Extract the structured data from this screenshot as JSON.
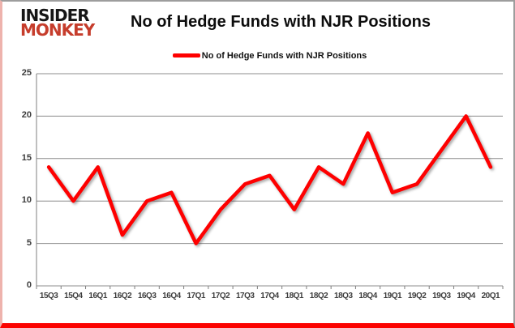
{
  "logo": {
    "line1": "INSIDER",
    "line2": "MONKEY"
  },
  "header": {
    "title": "No of Hedge Funds with NJR Positions"
  },
  "legend": {
    "label": "No of Hedge Funds with NJR Positions"
  },
  "colors": {
    "line": "#fe0000",
    "grid": "#8c8c8c",
    "axis": "#7f7f7f",
    "tick_text": "#3c3c3c",
    "logo_accent": "#c63d2c",
    "bottom_bar": "#fb0300"
  },
  "chart_data": {
    "type": "line",
    "title": "No of Hedge Funds with NJR Positions",
    "series_name": "No of Hedge Funds with NJR Positions",
    "categories": [
      "15Q3",
      "15Q4",
      "16Q1",
      "16Q2",
      "16Q3",
      "16Q4",
      "17Q1",
      "17Q2",
      "17Q3",
      "17Q4",
      "18Q1",
      "18Q2",
      "18Q3",
      "18Q4",
      "19Q1",
      "19Q2",
      "19Q3",
      "19Q4",
      "20Q1"
    ],
    "values": [
      14,
      10,
      14,
      6,
      10,
      11,
      5,
      9,
      12,
      13,
      9,
      14,
      12,
      18,
      11,
      12,
      16,
      20,
      14
    ],
    "ylim": [
      0,
      25
    ],
    "yticks": [
      0,
      5,
      10,
      15,
      20,
      25
    ],
    "grid": true,
    "legend_position": "top",
    "xlabel": "",
    "ylabel": ""
  }
}
